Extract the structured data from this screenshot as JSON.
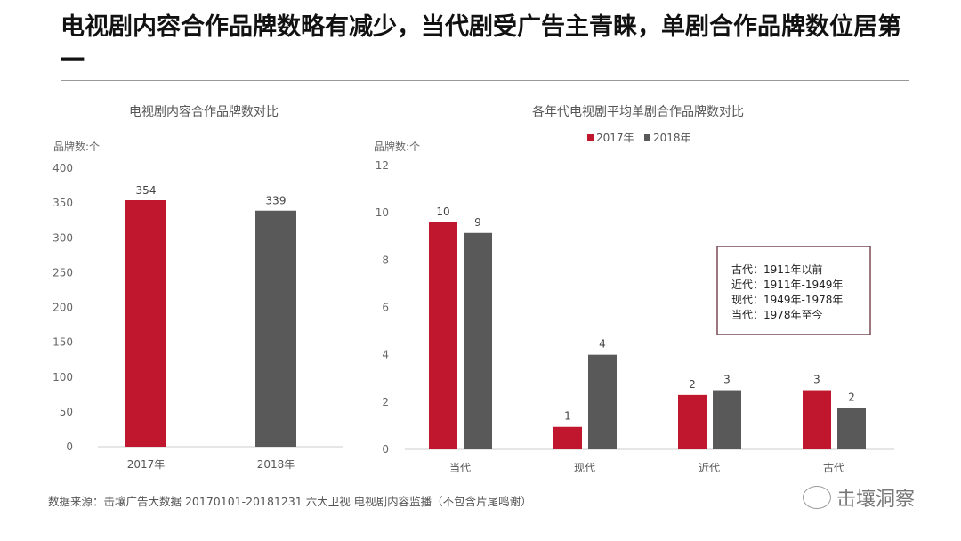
{
  "title": "电视剧内容合作品牌数略有减少，当代剧受广告主青睐，单剧合作品牌数位居第一",
  "source": "数据来源：击壤广告大数据 20170101-20181231 六大卫视 电视剧内容监播（不包含片尾鸣谢）",
  "brand": "击壤洞察",
  "brand_icon": "wechat-icon",
  "colors": {
    "2017": "#c0172f",
    "2018": "#595959"
  },
  "chart_data": [
    {
      "type": "bar",
      "title": "电视剧内容合作品牌数对比",
      "ylabel": "品牌数:个",
      "categories": [
        "2017年",
        "2018年"
      ],
      "values": [
        354,
        339
      ],
      "data_labels": [
        "354",
        "339"
      ],
      "ylim": [
        0,
        400
      ],
      "yticks": [
        "0",
        "50",
        "100",
        "150",
        "200",
        "250",
        "300",
        "350",
        "400"
      ],
      "grid": false
    },
    {
      "type": "bar",
      "title": "各年代电视剧平均单剧合作品牌数对比",
      "ylabel": "品牌数:个",
      "categories": [
        "当代",
        "现代",
        "近代",
        "古代"
      ],
      "series": [
        {
          "name": "2017年",
          "values": [
            9.6,
            0.95,
            2.3,
            2.5
          ],
          "data_labels": [
            "10",
            "1",
            "2",
            "3"
          ]
        },
        {
          "name": "2018年",
          "values": [
            9.15,
            4.0,
            2.5,
            1.75
          ],
          "data_labels": [
            "9",
            "4",
            "3",
            "2"
          ]
        }
      ],
      "ylim": [
        0,
        12
      ],
      "yticks": [
        "0",
        "2",
        "4",
        "6",
        "8",
        "10",
        "12"
      ],
      "legend": "top",
      "grid": false,
      "annotation": [
        "古代：1911年以前",
        "近代：1911年-1949年",
        "现代：1949年-1978年",
        "当代：1978年至今"
      ]
    }
  ]
}
